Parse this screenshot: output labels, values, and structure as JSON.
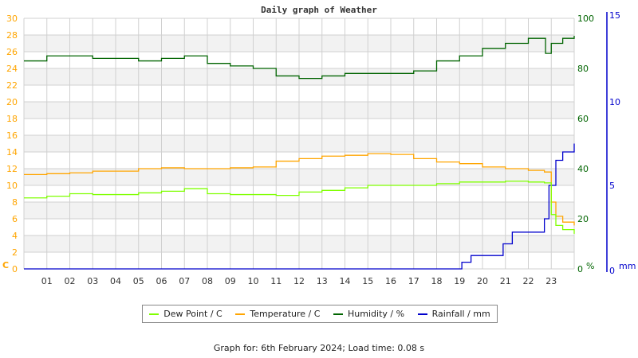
{
  "title": "Daily graph of Weather",
  "footer": "Graph for: 6th February 2024; Load time: 0.08 s",
  "colors": {
    "dew_point": "#7fff00",
    "temperature": "#ffa500",
    "humidity": "#006400",
    "rainfall": "#0000cc",
    "left_axis": "#ffa500",
    "right_axis_humidity": "#006400",
    "right_axis_rain": "#0000cc",
    "grid": "#d0d0d0",
    "band": "#f2f2f2"
  },
  "legend": [
    {
      "label": "Dew Point / C",
      "color": "#7fff00"
    },
    {
      "label": "Temperature / C",
      "color": "#ffa500"
    },
    {
      "label": "Humidity / %",
      "color": "#006400"
    },
    {
      "label": "Rainfall / mm",
      "color": "#0000cc"
    }
  ],
  "chart_data": {
    "type": "line",
    "title": "Daily graph of Weather",
    "xlabel": "",
    "x_ticks": [
      "01",
      "02",
      "03",
      "04",
      "05",
      "06",
      "07",
      "08",
      "09",
      "10",
      "11",
      "12",
      "13",
      "14",
      "15",
      "16",
      "17",
      "18",
      "19",
      "20",
      "21",
      "22",
      "23"
    ],
    "xlim": [
      0,
      24
    ],
    "axes": {
      "left": {
        "label": "C",
        "ticks": [
          0,
          2,
          4,
          6,
          8,
          10,
          12,
          14,
          16,
          18,
          20,
          22,
          24,
          26,
          28,
          30
        ],
        "ylim": [
          0,
          30
        ]
      },
      "right_humidity": {
        "label": "%",
        "ticks": [
          0,
          20,
          40,
          60,
          80,
          100
        ],
        "ylim": [
          0,
          100
        ]
      },
      "right_rain": {
        "label": "mm",
        "ticks": [
          0,
          5,
          10,
          15
        ],
        "ylim": [
          0,
          15
        ]
      }
    },
    "grid": true,
    "legend_position": "bottom",
    "series": [
      {
        "name": "Dew Point / C",
        "axis": "left",
        "x": [
          0,
          1,
          2,
          3,
          4,
          5,
          6,
          7,
          8,
          9,
          10,
          11,
          12,
          13,
          14,
          15,
          16,
          17,
          18,
          19,
          20,
          21,
          22,
          22.7,
          23.0,
          23.2,
          23.5,
          24
        ],
        "values": [
          8.5,
          8.7,
          9.0,
          8.9,
          8.9,
          9.1,
          9.3,
          9.6,
          9.0,
          8.9,
          8.9,
          8.8,
          9.2,
          9.4,
          9.7,
          10.0,
          10.0,
          10.0,
          10.2,
          10.4,
          10.4,
          10.5,
          10.4,
          10.3,
          6.5,
          5.2,
          4.7,
          4.2
        ]
      },
      {
        "name": "Temperature / C",
        "axis": "left",
        "x": [
          0,
          1,
          2,
          3,
          4,
          5,
          6,
          7,
          8,
          9,
          10,
          11,
          12,
          13,
          14,
          15,
          16,
          17,
          18,
          19,
          20,
          21,
          22,
          22.7,
          23.0,
          23.2,
          23.5,
          24
        ],
        "values": [
          11.3,
          11.4,
          11.5,
          11.7,
          11.7,
          12.0,
          12.1,
          12.0,
          12.0,
          12.1,
          12.2,
          12.9,
          13.2,
          13.5,
          13.6,
          13.8,
          13.7,
          13.2,
          12.8,
          12.6,
          12.2,
          12.0,
          11.8,
          11.6,
          8.0,
          6.3,
          5.6,
          5.2
        ]
      },
      {
        "name": "Humidity / %",
        "axis": "right_humidity",
        "x": [
          0,
          1,
          2,
          3,
          4,
          5,
          6,
          7,
          8,
          9,
          10,
          11,
          12,
          13,
          14,
          15,
          16,
          17,
          18,
          19,
          20,
          21,
          22,
          22.6,
          22.75,
          23,
          23.5,
          24
        ],
        "values": [
          83,
          85,
          85,
          84,
          84,
          83,
          84,
          85,
          82,
          81,
          80,
          77,
          76,
          77,
          78,
          78,
          78,
          79,
          83,
          85,
          88,
          90,
          92,
          92,
          86,
          90,
          92,
          93
        ]
      },
      {
        "name": "Rainfall / mm",
        "axis": "right_rain",
        "x": [
          0,
          19.0,
          19.1,
          19.5,
          20.5,
          20.9,
          21.3,
          22.5,
          22.7,
          22.9,
          23.2,
          23.5,
          24
        ],
        "values": [
          0,
          0,
          0.4,
          0.8,
          0.8,
          1.5,
          2.2,
          2.2,
          3.0,
          5.0,
          6.5,
          7.0,
          7.5
        ]
      }
    ]
  }
}
